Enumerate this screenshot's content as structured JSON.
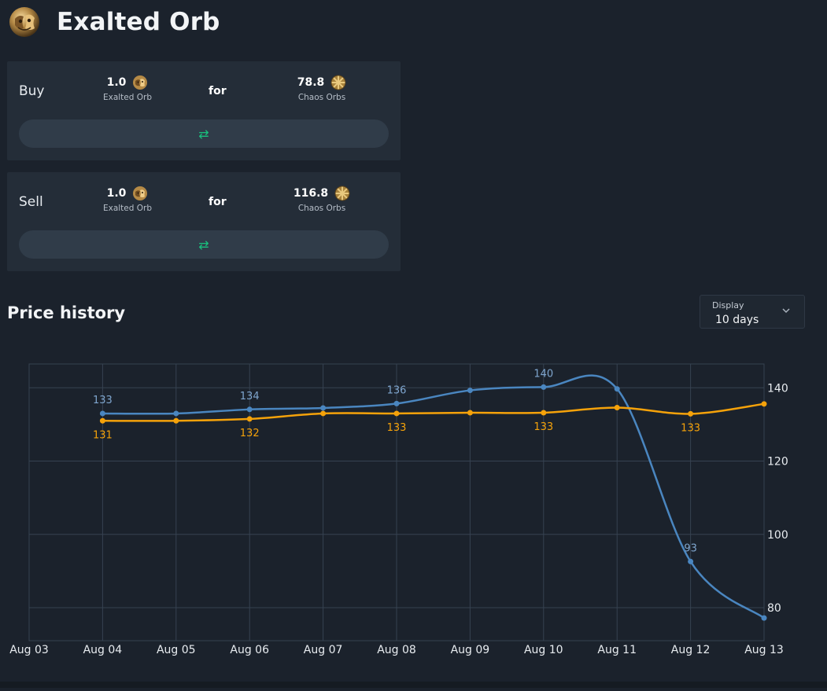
{
  "header": {
    "title": "Exalted Orb",
    "icon": "exalted-orb-icon"
  },
  "trade": {
    "for_label": "for",
    "buy": {
      "label": "Buy",
      "give_amount": "1.0",
      "give_currency": "Exalted Orb",
      "get_amount": "78.8",
      "get_currency": "Chaos Orbs",
      "swap_icon": "swap-arrows-icon"
    },
    "sell": {
      "label": "Sell",
      "give_amount": "1.0",
      "give_currency": "Exalted Orb",
      "get_amount": "116.8",
      "get_currency": "Chaos Orbs",
      "swap_icon": "swap-arrows-icon"
    }
  },
  "price_history": {
    "title": "Price history",
    "display": {
      "label": "Display",
      "value": "10 days"
    }
  },
  "colors": {
    "blue_series": "#4a86c0",
    "orange_series": "#f5a20a",
    "accent_green": "#19c07d",
    "background": "#1b222c"
  },
  "chart_data": {
    "type": "line",
    "x": [
      "Aug 03",
      "Aug 04",
      "Aug 05",
      "Aug 06",
      "Aug 07",
      "Aug 08",
      "Aug 09",
      "Aug 10",
      "Aug 11",
      "Aug 12",
      "Aug 13"
    ],
    "series": [
      {
        "values": [
          null,
          133,
          133,
          134.1,
          134.5,
          135.7,
          139.3,
          140.2,
          139.7,
          92.6,
          77.2
        ],
        "labels": [
          "",
          "133",
          "",
          "134",
          "",
          "136",
          "",
          "140",
          "",
          "93",
          ""
        ],
        "color": "#4a86c0"
      },
      {
        "values": [
          null,
          131,
          131,
          131.5,
          133,
          133,
          133.2,
          133.2,
          134.6,
          132.9,
          135.6
        ],
        "labels": [
          "",
          "131",
          "",
          "132",
          "",
          "133",
          "",
          "133",
          "",
          "133",
          ""
        ],
        "color": "#f5a20a"
      }
    ],
    "yticks": [
      80,
      100,
      120,
      140
    ],
    "ylim": [
      71,
      146.5
    ],
    "grid": true,
    "y_axis_side": "right",
    "legend": "none"
  }
}
